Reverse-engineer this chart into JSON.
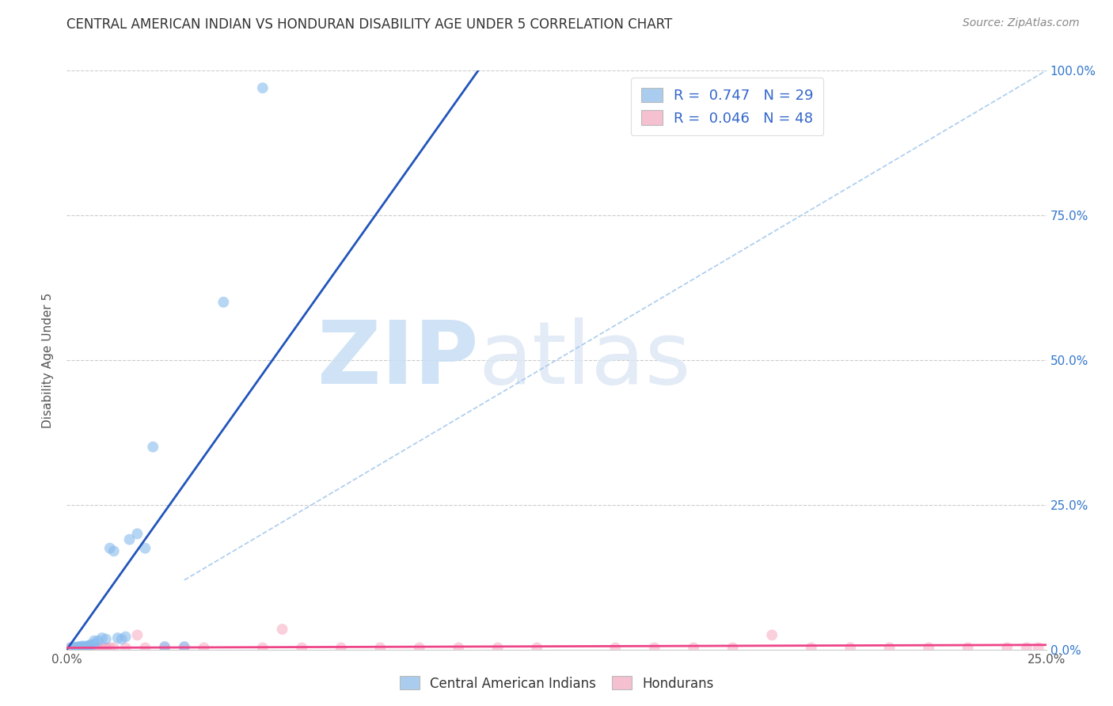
{
  "title": "CENTRAL AMERICAN INDIAN VS HONDURAN DISABILITY AGE UNDER 5 CORRELATION CHART",
  "source": "Source: ZipAtlas.com",
  "ylabel": "Disability Age Under 5",
  "xlim": [
    0.0,
    0.25
  ],
  "ylim": [
    0.0,
    1.0
  ],
  "ytick_values": [
    0.0,
    0.25,
    0.5,
    0.75,
    1.0
  ],
  "ytick_labels": [
    "0.0%",
    "25.0%",
    "50.0%",
    "75.0%",
    "100.0%"
  ],
  "xtick_values": [
    0.0,
    0.25
  ],
  "xtick_labels": [
    "0.0%",
    "25.0%"
  ],
  "grid_color": "#cccccc",
  "bg_color": "#ffffff",
  "watermark_zip": "ZIP",
  "watermark_atlas": "atlas",
  "watermark_color": "#ddeeff",
  "blue_scatter_color": "#88bbee",
  "pink_scatter_color": "#f5aac0",
  "blue_line_color": "#2255bb",
  "pink_line_color": "#ee4488",
  "dashed_line_color": "#aaccee",
  "legend_blue_color": "#aaccee",
  "legend_pink_color": "#f5c0d0",
  "legend_blue_label": "R =  0.747   N = 29",
  "legend_pink_label": "R =  0.046   N = 48",
  "legend_text_color": "#3366cc",
  "bottom_legend_blue": "Central American Indians",
  "bottom_legend_pink": "Hondurans",
  "blue_points_x": [
    0.001,
    0.002,
    0.002,
    0.003,
    0.003,
    0.004,
    0.004,
    0.005,
    0.005,
    0.006,
    0.006,
    0.007,
    0.007,
    0.008,
    0.009,
    0.01,
    0.011,
    0.012,
    0.013,
    0.014,
    0.015,
    0.016,
    0.018,
    0.02,
    0.022,
    0.025,
    0.03,
    0.04,
    0.05
  ],
  "blue_points_y": [
    0.003,
    0.003,
    0.004,
    0.004,
    0.005,
    0.005,
    0.006,
    0.005,
    0.006,
    0.007,
    0.008,
    0.01,
    0.015,
    0.015,
    0.02,
    0.018,
    0.175,
    0.17,
    0.02,
    0.018,
    0.022,
    0.19,
    0.2,
    0.175,
    0.35,
    0.005,
    0.005,
    0.6,
    0.97
  ],
  "pink_points_x": [
    0.001,
    0.001,
    0.002,
    0.002,
    0.003,
    0.003,
    0.004,
    0.004,
    0.005,
    0.005,
    0.006,
    0.006,
    0.007,
    0.008,
    0.008,
    0.009,
    0.01,
    0.01,
    0.011,
    0.012,
    0.015,
    0.018,
    0.02,
    0.025,
    0.03,
    0.035,
    0.05,
    0.055,
    0.06,
    0.07,
    0.08,
    0.09,
    0.1,
    0.11,
    0.12,
    0.14,
    0.15,
    0.16,
    0.17,
    0.18,
    0.19,
    0.2,
    0.21,
    0.22,
    0.23,
    0.24,
    0.245,
    0.248
  ],
  "pink_points_y": [
    0.003,
    0.003,
    0.003,
    0.003,
    0.003,
    0.003,
    0.003,
    0.003,
    0.003,
    0.003,
    0.003,
    0.003,
    0.003,
    0.003,
    0.003,
    0.003,
    0.003,
    0.003,
    0.003,
    0.003,
    0.003,
    0.025,
    0.003,
    0.003,
    0.003,
    0.003,
    0.003,
    0.035,
    0.003,
    0.003,
    0.003,
    0.003,
    0.003,
    0.003,
    0.003,
    0.003,
    0.003,
    0.003,
    0.003,
    0.025,
    0.003,
    0.003,
    0.003,
    0.003,
    0.003,
    0.003,
    0.003,
    0.003
  ],
  "blue_line_x": [
    0.0,
    0.105
  ],
  "blue_line_y": [
    0.0,
    1.0
  ],
  "pink_line_x": [
    0.0,
    0.25
  ],
  "pink_line_y": [
    0.003,
    0.008
  ],
  "dash_line_x": [
    0.03,
    0.25
  ],
  "dash_line_y": [
    0.12,
    1.0
  ]
}
